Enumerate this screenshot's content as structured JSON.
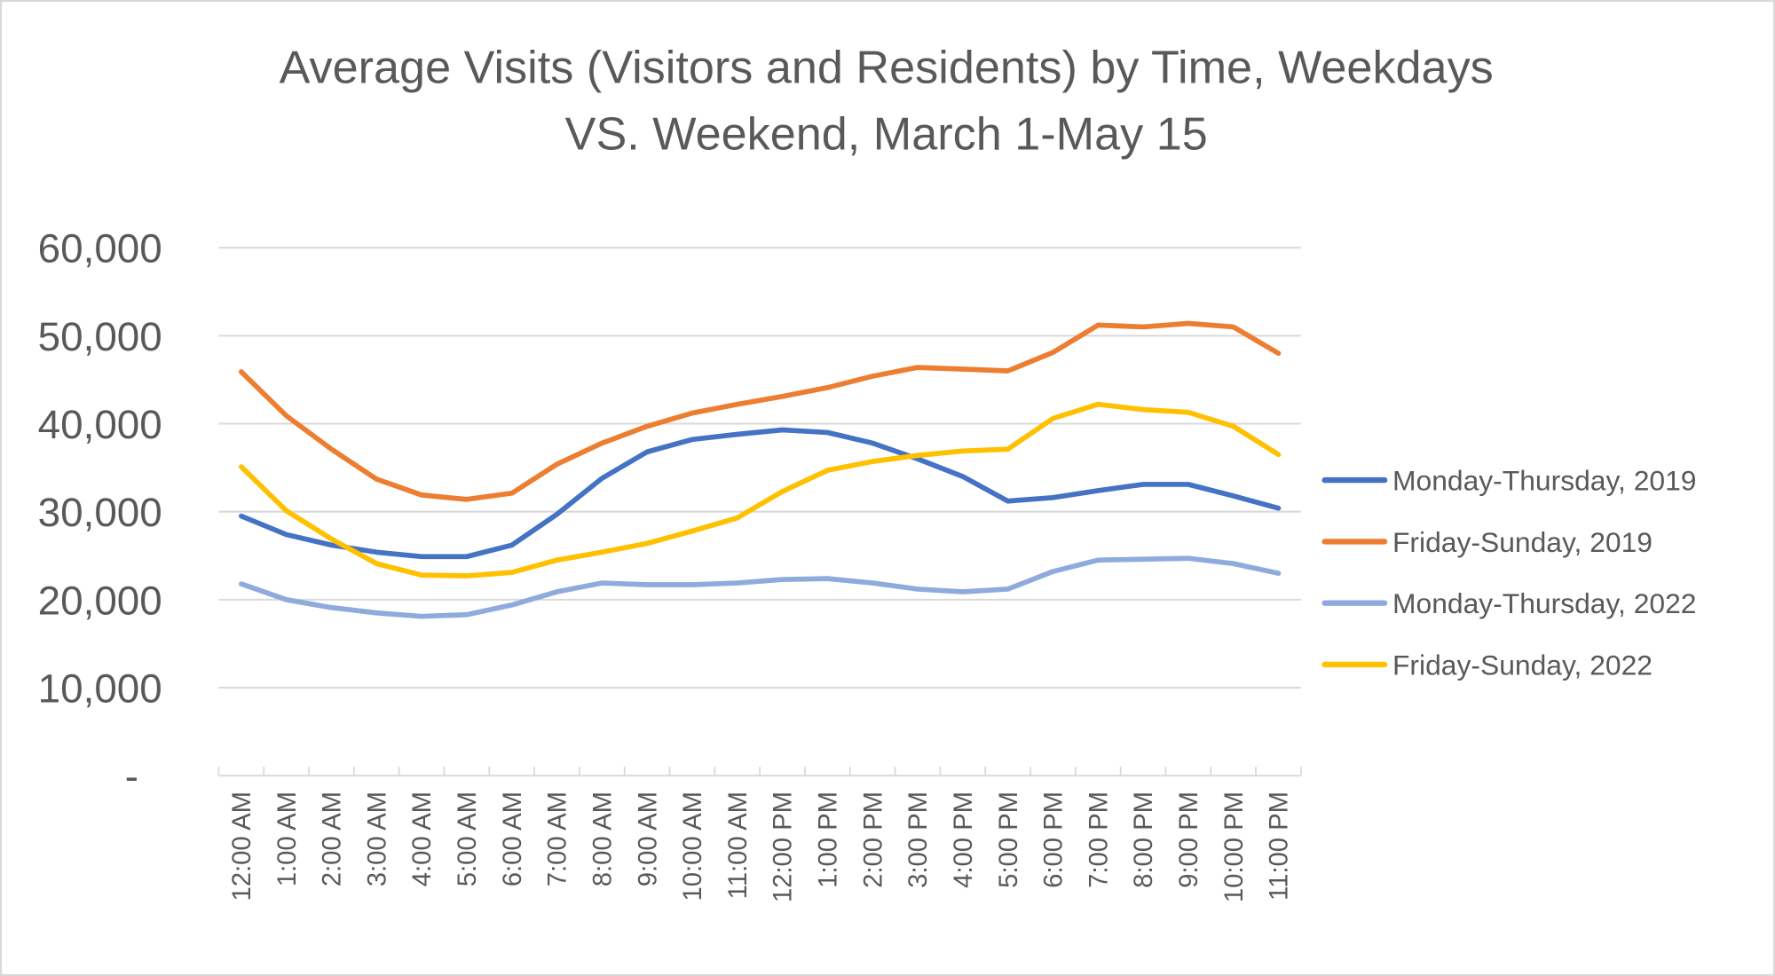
{
  "chart_data": {
    "type": "line",
    "title_lines": [
      "Average Visits (Visitors and Residents) by Time, Weekdays",
      "VS. Weekend, March 1-May 15"
    ],
    "xlabel": "",
    "ylabel": "",
    "categories": [
      "12:00 AM",
      "1:00 AM",
      "2:00 AM",
      "3:00 AM",
      "4:00 AM",
      "5:00 AM",
      "6:00 AM",
      "7:00 AM",
      "8:00 AM",
      "9:00 AM",
      "10:00 AM",
      "11:00 AM",
      "12:00 PM",
      "1:00 PM",
      "2:00 PM",
      "3:00 PM",
      "4:00 PM",
      "5:00 PM",
      "6:00 PM",
      "7:00 PM",
      "8:00 PM",
      "9:00 PM",
      "10:00 PM",
      "11:00 PM"
    ],
    "ylim": [
      0,
      60000
    ],
    "yticks": [
      0,
      10000,
      20000,
      30000,
      40000,
      50000,
      60000
    ],
    "ytick_labels": [
      "-",
      "10,000",
      "20,000",
      "30,000",
      "40,000",
      "50,000",
      "60,000"
    ],
    "grid": true,
    "legend_position": "right",
    "series": [
      {
        "name": "Monday-Thursday, 2019",
        "color": "#4472C4",
        "values": [
          29500,
          27400,
          26200,
          25400,
          24900,
          24900,
          26200,
          29700,
          33800,
          36800,
          38200,
          38800,
          39300,
          39000,
          37800,
          36000,
          34000,
          31200,
          31600,
          32400,
          33100,
          33100,
          31800,
          30400
        ]
      },
      {
        "name": "Friday-Sunday, 2019",
        "color": "#ED7D31",
        "values": [
          45900,
          40900,
          37100,
          33700,
          31900,
          31400,
          32100,
          35400,
          37800,
          39700,
          41200,
          42200,
          43100,
          44100,
          45400,
          46400,
          46200,
          46000,
          48100,
          51200,
          51000,
          51400,
          51000,
          48000
        ]
      },
      {
        "name": "Monday-Thursday, 2022",
        "color": "#8FAADC",
        "values": [
          21800,
          20000,
          19100,
          18500,
          18100,
          18300,
          19400,
          20900,
          21900,
          21700,
          21700,
          21900,
          22300,
          22400,
          21900,
          21200,
          20900,
          21200,
          23200,
          24500,
          24600,
          24700,
          24100,
          23000
        ]
      },
      {
        "name": "Friday-Sunday, 2022",
        "color": "#FFC000",
        "values": [
          35100,
          30100,
          26900,
          24100,
          22800,
          22700,
          23100,
          24500,
          25400,
          26400,
          27800,
          29300,
          32300,
          34700,
          35700,
          36400,
          36900,
          37100,
          40600,
          42200,
          41600,
          41300,
          39700,
          36500
        ]
      }
    ]
  }
}
